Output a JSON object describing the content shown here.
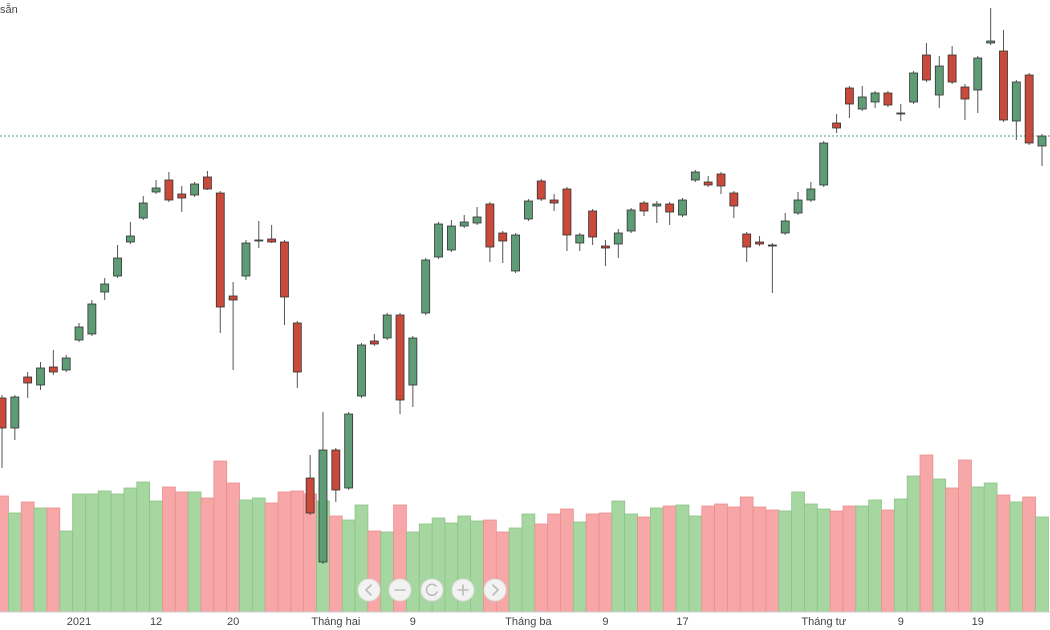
{
  "chart_data": {
    "type": "candlestick",
    "title": "sẵn",
    "categories": [
      null,
      null,
      null,
      null,
      null,
      null,
      "2021",
      null,
      null,
      null,
      null,
      null,
      "12",
      null,
      null,
      null,
      null,
      null,
      "20",
      null,
      null,
      null,
      null,
      null,
      null,
      null,
      "Tháng hai",
      null,
      null,
      null,
      null,
      null,
      "9",
      null,
      null,
      null,
      null,
      null,
      null,
      null,
      null,
      "Tháng ba",
      null,
      null,
      null,
      null,
      null,
      "9",
      null,
      null,
      null,
      null,
      null,
      "17",
      null,
      null,
      null,
      null,
      null,
      null,
      null,
      null,
      null,
      null,
      "Tháng tư",
      null,
      null,
      null,
      null,
      null,
      "9",
      null,
      null,
      null,
      null,
      null,
      "19",
      null,
      null,
      null,
      null,
      null
    ],
    "open": [
      232,
      202,
      253,
      245,
      263,
      260,
      290,
      296,
      338,
      354,
      388,
      412,
      438,
      450,
      436,
      435,
      453,
      437,
      334,
      354,
      389,
      391,
      388,
      307,
      152,
      68,
      180,
      142,
      234,
      289,
      292,
      315,
      245,
      317,
      373,
      380,
      404,
      407,
      426,
      397,
      359,
      411,
      449,
      430,
      441,
      387,
      419,
      384,
      386,
      399,
      427,
      424,
      426,
      415,
      450,
      448,
      456,
      437,
      396,
      388,
      385,
      397,
      417,
      430,
      445,
      507,
      542,
      521,
      528,
      537,
      516,
      528,
      575,
      535,
      575,
      543,
      540,
      587,
      579,
      509,
      555,
      484
    ],
    "high": [
      235,
      235,
      258,
      268,
      280,
      275,
      307,
      330,
      352,
      385,
      408,
      434,
      450,
      458,
      444,
      448,
      459,
      439,
      348,
      390,
      409,
      405,
      390,
      309,
      175,
      218,
      182,
      218,
      287,
      296,
      317,
      317,
      294,
      372,
      408,
      410,
      415,
      423,
      428,
      399,
      397,
      431,
      451,
      436,
      443,
      397,
      421,
      390,
      401,
      422,
      429,
      429,
      428,
      432,
      460,
      454,
      458,
      439,
      398,
      394,
      387,
      417,
      438,
      448,
      489,
      516,
      544,
      544,
      539,
      539,
      526,
      559,
      587,
      574,
      584,
      546,
      574,
      622,
      600,
      550,
      557,
      496
    ],
    "low": [
      162,
      190,
      232,
      240,
      255,
      258,
      288,
      294,
      330,
      352,
      386,
      410,
      436,
      428,
      418,
      433,
      440,
      297,
      260,
      350,
      382,
      387,
      305,
      242,
      115,
      66,
      128,
      140,
      232,
      284,
      290,
      216,
      223,
      315,
      371,
      378,
      402,
      405,
      368,
      367,
      357,
      409,
      429,
      419,
      379,
      379,
      385,
      364,
      372,
      397,
      414,
      407,
      405,
      413,
      448,
      443,
      436,
      412,
      368,
      384,
      337,
      395,
      415,
      428,
      443,
      497,
      512,
      519,
      522,
      523,
      509,
      526,
      548,
      522,
      546,
      510,
      517,
      585,
      508,
      490,
      485,
      464
    ],
    "close": [
      202,
      233,
      247,
      262,
      258,
      272,
      303,
      326,
      346,
      372,
      394,
      427,
      442,
      430,
      432,
      446,
      441,
      323,
      330,
      387,
      390,
      388,
      333,
      258,
      117,
      180,
      140,
      216,
      285,
      286,
      315,
      230,
      292,
      370,
      406,
      404,
      408,
      413,
      383,
      389,
      395,
      429,
      431,
      427,
      395,
      395,
      393,
      382,
      397,
      420,
      419,
      426,
      418,
      430,
      458,
      445,
      444,
      424,
      383,
      386,
      384,
      409,
      430,
      441,
      487,
      502,
      526,
      533,
      537,
      525,
      517,
      557,
      550,
      564,
      548,
      531,
      572,
      589,
      510,
      548,
      487,
      494
    ],
    "volume": [
      116,
      99,
      110,
      104,
      104,
      81,
      118,
      118,
      121,
      118,
      124,
      130,
      111,
      125,
      120,
      120,
      114,
      151,
      129,
      112,
      114,
      109,
      120,
      121,
      118,
      111,
      96,
      92,
      107,
      81,
      80,
      107,
      80,
      88,
      94,
      89,
      96,
      91,
      92,
      80,
      84,
      98,
      88,
      98,
      103,
      90,
      98,
      99,
      111,
      98,
      95,
      104,
      106,
      107,
      96,
      106,
      108,
      105,
      115,
      105,
      102,
      101,
      120,
      108,
      103,
      101,
      106,
      106,
      112,
      102,
      113,
      136,
      157,
      133,
      124,
      152,
      125,
      129,
      117,
      110,
      115,
      95
    ],
    "ylim": [
      0,
      630
    ],
    "volume_ylim": [
      0,
      612
    ],
    "up_color": "#5e9c76",
    "down_color": "#c9493b",
    "volume_up_color": "#a6d7a0",
    "volume_down_color": "#f7a7a7",
    "last_price_line": true
  }
}
